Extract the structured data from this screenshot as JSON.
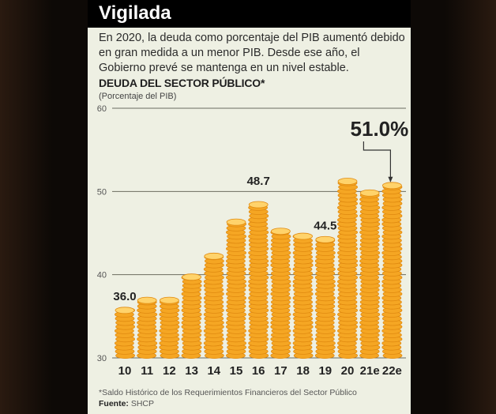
{
  "header": {
    "title": "Vigilada"
  },
  "intro": "En 2020, la deuda como porcentaje del PIB aumentó debido en gran medida a un menor PIB. Desde ese año, el Gobierno prevé se mantenga en un nivel estable.",
  "footnote": "*Saldo Histórico de los Requerimientos Financieros del Sector Público",
  "source": {
    "label": "Fuente:",
    "value": "SHCP"
  },
  "colors": {
    "coin": "#f5a623",
    "coin_dark": "#e08a10",
    "coin_light": "#ffd36b",
    "background": "#eef0e3",
    "header": "#000000"
  },
  "chart_data": {
    "type": "bar",
    "title": "DEUDA DEL SECTOR PÚBLICO*",
    "ylabel": "(Porcentaje del PIB)",
    "categories": [
      "10",
      "11",
      "12",
      "13",
      "14",
      "15",
      "16",
      "17",
      "18",
      "19",
      "20",
      "21e",
      "22e"
    ],
    "values": [
      36.0,
      37.2,
      37.2,
      40.0,
      42.5,
      46.6,
      48.7,
      45.5,
      44.9,
      44.5,
      51.5,
      50.1,
      51.0
    ],
    "ylim": [
      30,
      60
    ],
    "yticks": [
      "30",
      "40",
      "50",
      "60"
    ],
    "grid": true,
    "data_labels": [
      {
        "category": "10",
        "text": "36.0"
      },
      {
        "category": "16",
        "text": "48.7"
      },
      {
        "category": "19",
        "text": "44.5"
      },
      {
        "category": "22e",
        "text": "51.0%"
      }
    ],
    "bar_style": "stacked coins"
  }
}
